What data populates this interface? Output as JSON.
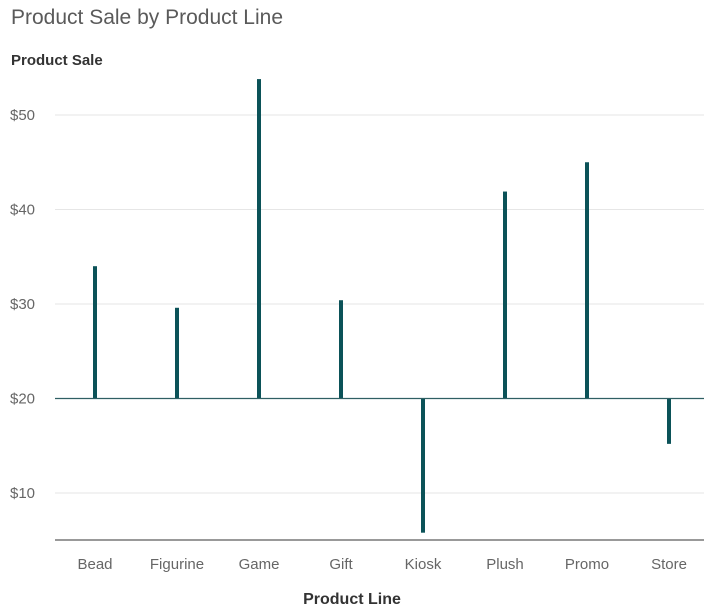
{
  "chart_data": {
    "type": "bar",
    "title": "Product Sale by Product Line",
    "xlabel": "Product Line",
    "ylabel": "Product Sale",
    "categories": [
      "Bead",
      "Figurine",
      "Game",
      "Gift",
      "Kiosk",
      "Plush",
      "Promo",
      "Store"
    ],
    "values": [
      34,
      29.6,
      53.8,
      30.4,
      5.8,
      41.9,
      45,
      15.2
    ],
    "baseline": 20,
    "ylim": [
      5,
      55
    ],
    "yticks": [
      10,
      20,
      30,
      40,
      50
    ],
    "ytick_labels": [
      "$10",
      "$20",
      "$30",
      "$40",
      "$50"
    ],
    "grid": true,
    "bar_color": "#0b5258",
    "axis_color": "#2f5f63",
    "grid_color": "#e6e6e6"
  }
}
